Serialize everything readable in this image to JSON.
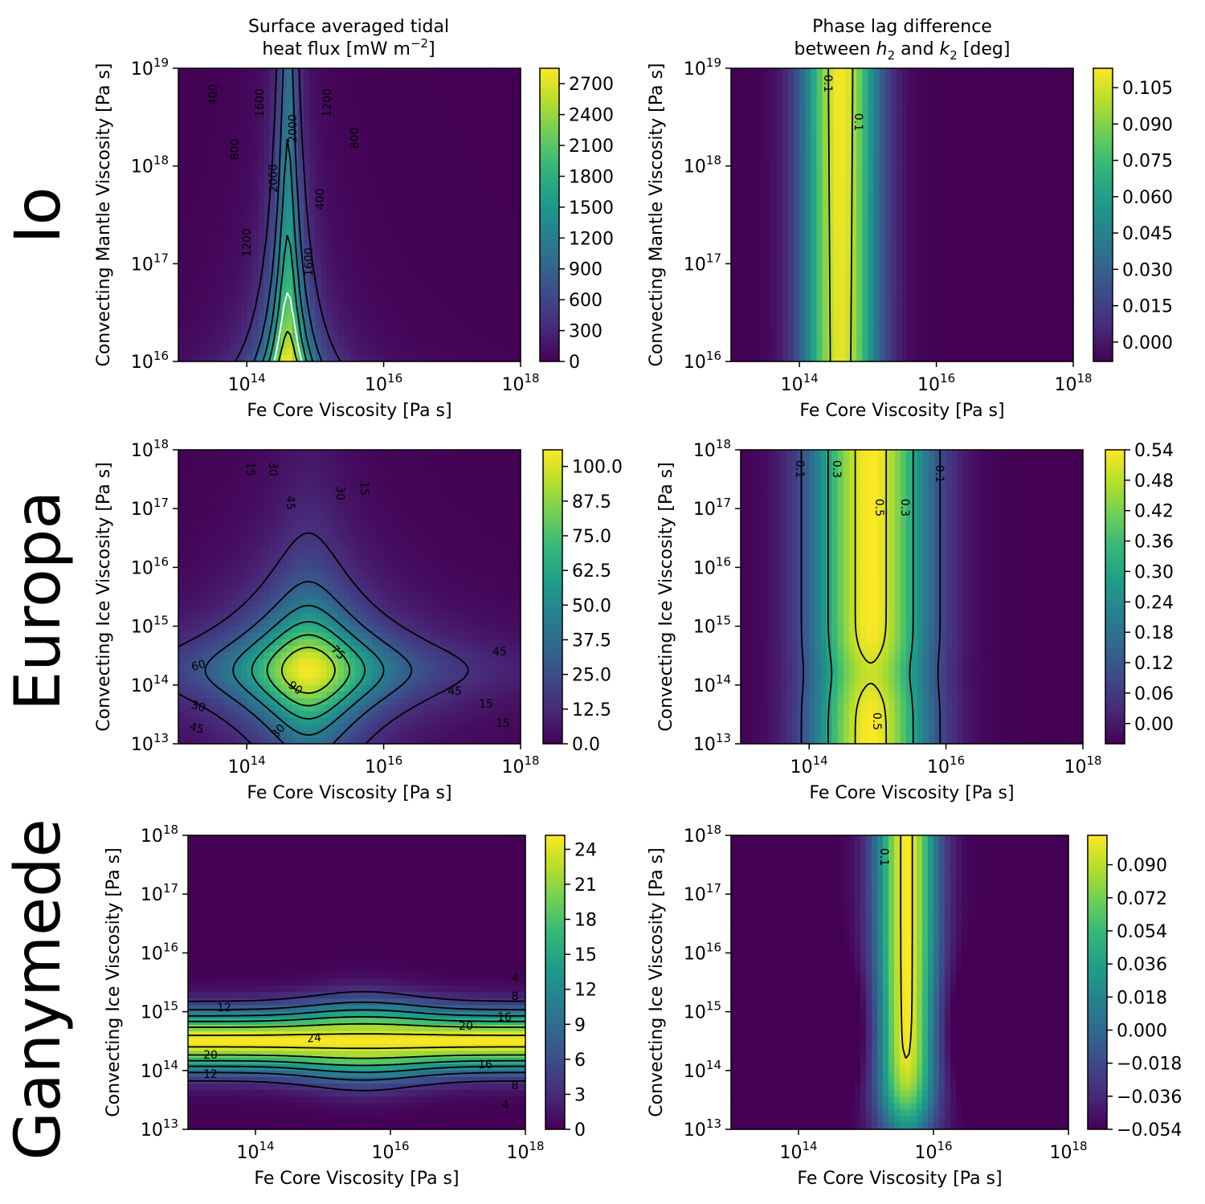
{
  "colors": {
    "viridis": [
      "#440154",
      "#482878",
      "#3e4989",
      "#31688e",
      "#26828e",
      "#1f9e89",
      "#35b779",
      "#6ece58",
      "#b5de2b",
      "#fde725"
    ],
    "contour_line": "#000000",
    "highlight_line": "#ffffff"
  },
  "column_titles": [
    {
      "line1": "Surface averaged tidal",
      "line2_pre": "heat flux [mW m",
      "line2_sup": "−2",
      "line2_post": "]"
    },
    {
      "line1": "Phase lag difference",
      "line2_pre": "between ",
      "h": "h",
      "h_sub": "2",
      "mid": " and ",
      "k": "k",
      "k_sub": "2",
      "line2_post": " [deg]"
    }
  ],
  "rows": [
    {
      "label": "Io",
      "ylabel": "Convecting Mantle Viscosity [Pa s]",
      "yexp": [
        "16",
        "17",
        "18",
        "19"
      ]
    },
    {
      "label": "Europa",
      "ylabel": "Convecting Ice Viscosity [Pa s]",
      "yexp": [
        "13",
        "14",
        "15",
        "16",
        "17",
        "18"
      ]
    },
    {
      "label": "Ganymede",
      "ylabel": "Convecting Ice Viscosity [Pa s]",
      "yexp": [
        "13",
        "14",
        "15",
        "16",
        "17",
        "18"
      ]
    }
  ],
  "xlabel": "Fe Core Viscosity [Pa s]",
  "xexp": [
    "14",
    "16",
    "18"
  ],
  "tick_base": "10",
  "chart_data": [
    {
      "type": "heatmap",
      "body": "Io",
      "quantity": "Surface averaged tidal heat flux",
      "x_log10_range": [
        13,
        18
      ],
      "y_log10_range": [
        16,
        19
      ],
      "peak": {
        "x_log10": 14.6,
        "y_log10": 16.0,
        "value": 2850
      },
      "colorbar": {
        "ticks": [
          "0",
          "300",
          "600",
          "900",
          "1200",
          "1500",
          "1800",
          "2100",
          "2400",
          "2700"
        ],
        "min": 0,
        "max": 2850
      },
      "contour_labels": [
        "400",
        "800",
        "1600",
        "2000",
        "2000",
        "1200",
        "800",
        "400",
        "1200",
        "1600"
      ],
      "contour_levels": [
        400,
        800,
        1200,
        1600,
        2000,
        2400
      ]
    },
    {
      "type": "heatmap",
      "body": "Io",
      "quantity": "Phase lag difference between h2 and k2",
      "x_log10_range": [
        13,
        18
      ],
      "y_log10_range": [
        16,
        19
      ],
      "peak": {
        "x_log10": 14.6,
        "value": 0.112
      },
      "colorbar": {
        "ticks": [
          "0.000",
          "0.015",
          "0.030",
          "0.045",
          "0.060",
          "0.075",
          "0.090",
          "0.105"
        ],
        "min": -0.008,
        "max": 0.113
      },
      "contour_labels": [
        "0.1",
        "0.1"
      ],
      "contour_levels": [
        0.1
      ]
    },
    {
      "type": "heatmap",
      "body": "Europa",
      "quantity": "Surface averaged tidal heat flux",
      "x_log10_range": [
        13,
        18
      ],
      "y_log10_range": [
        13,
        18
      ],
      "peak": {
        "x_log10": 14.9,
        "y_log10": 14.25,
        "value": 105
      },
      "colorbar": {
        "ticks": [
          "0.0",
          "12.5",
          "25.0",
          "37.5",
          "50.0",
          "62.5",
          "75.0",
          "87.5",
          "100.0"
        ],
        "min": 0,
        "max": 106
      },
      "contour_labels": [
        "15",
        "30",
        "45",
        "30",
        "15",
        "75",
        "60",
        "90",
        "45",
        "45",
        "30",
        "30",
        "15",
        "45",
        "15"
      ],
      "contour_levels": [
        15,
        30,
        45,
        60,
        75,
        90
      ]
    },
    {
      "type": "heatmap",
      "body": "Europa",
      "quantity": "Phase lag difference between h2 and k2",
      "x_log10_range": [
        13,
        18
      ],
      "y_log10_range": [
        13,
        18
      ],
      "peak": {
        "x_log10": 14.9,
        "value": 0.54
      },
      "colorbar": {
        "ticks": [
          "0.00",
          "0.06",
          "0.12",
          "0.18",
          "0.24",
          "0.30",
          "0.36",
          "0.42",
          "0.48",
          "0.54"
        ],
        "min": -0.04,
        "max": 0.54
      },
      "contour_labels": [
        "0.1",
        "0.3",
        "0.5",
        "0.3",
        "0.1",
        "0.5"
      ],
      "contour_levels": [
        0.1,
        0.3,
        0.5
      ]
    },
    {
      "type": "heatmap",
      "body": "Ganymede",
      "quantity": "Surface averaged tidal heat flux",
      "x_log10_range": [
        13,
        18
      ],
      "y_log10_range": [
        13,
        18
      ],
      "peak": {
        "x_log10": 15.6,
        "y_log10": 14.5,
        "value": 25
      },
      "colorbar": {
        "ticks": [
          "0",
          "3",
          "6",
          "9",
          "12",
          "15",
          "18",
          "21",
          "24"
        ],
        "min": 0,
        "max": 25.2
      },
      "contour_labels": [
        "4",
        "8",
        "12",
        "16",
        "20",
        "24",
        "20",
        "16",
        "12",
        "8",
        "4"
      ],
      "contour_levels": [
        4,
        8,
        12,
        16,
        20,
        24
      ]
    },
    {
      "type": "heatmap",
      "body": "Ganymede",
      "quantity": "Phase lag difference between h2 and k2",
      "x_log10_range": [
        13,
        18
      ],
      "y_log10_range": [
        13,
        18
      ],
      "peak": {
        "x_log10": 15.6,
        "value": 0.105
      },
      "colorbar": {
        "ticks": [
          "−0.054",
          "−0.036",
          "−0.018",
          "0.000",
          "0.018",
          "0.036",
          "0.054",
          "0.072",
          "0.090"
        ],
        "min": -0.054,
        "max": 0.106
      },
      "contour_labels": [
        "0.1"
      ],
      "contour_levels": [
        0.1
      ]
    }
  ]
}
